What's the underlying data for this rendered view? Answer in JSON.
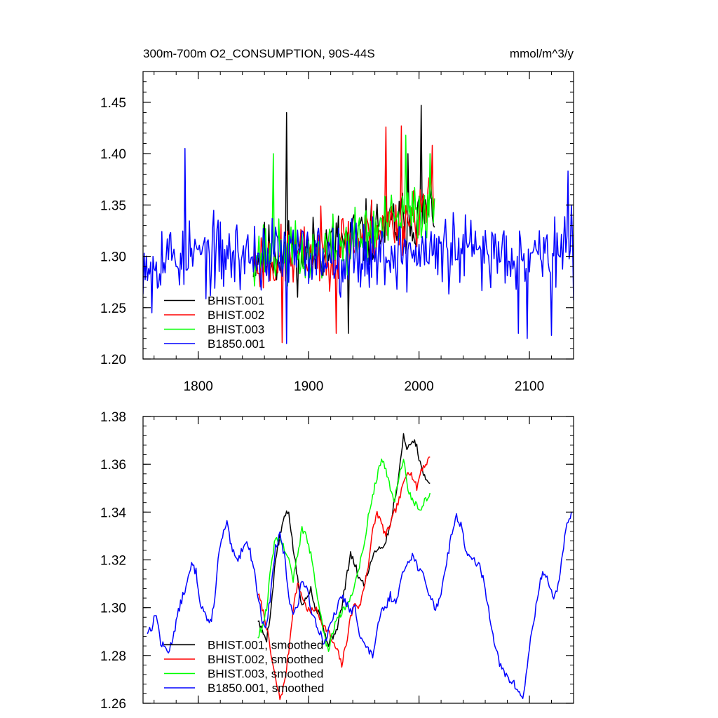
{
  "chart_data": [
    {
      "type": "line",
      "title": "300m-700m O2_CONSUMPTION, 90S-44S",
      "units": "mmol/m^3/y",
      "xlim": [
        1750,
        2140
      ],
      "ylim": [
        1.2,
        1.48
      ],
      "xticks": [
        1800,
        1900,
        2000,
        2100
      ],
      "xtick_labels": [
        "1800",
        "1900",
        "2000",
        "2100"
      ],
      "yticks": [
        1.2,
        1.25,
        1.3,
        1.35,
        1.4,
        1.45
      ],
      "ytick_labels": [
        "1.20",
        "1.25",
        "1.30",
        "1.35",
        "1.40",
        "1.45"
      ],
      "legend_position": "bottom-left",
      "series": [
        {
          "name": "BHIST.001",
          "color": "#000000",
          "x_start": 1850,
          "x_end": 2014,
          "seed": 11,
          "base": [
            [
              1850,
              1.3
            ],
            [
              1900,
              1.305
            ],
            [
              1950,
              1.32
            ],
            [
              2014,
              1.345
            ]
          ],
          "amp": 0.03,
          "spikes": [
            [
              1880,
              1.44
            ],
            [
              1936,
              1.225
            ],
            [
              2002,
              1.447
            ],
            [
              1990,
              1.4
            ]
          ]
        },
        {
          "name": "BHIST.002",
          "color": "#ff0000",
          "x_start": 1850,
          "x_end": 2014,
          "seed": 23,
          "base": [
            [
              1850,
              1.295
            ],
            [
              1900,
              1.3
            ],
            [
              1950,
              1.32
            ],
            [
              2014,
              1.35
            ]
          ],
          "amp": 0.03,
          "spikes": [
            [
              1876,
              1.216
            ],
            [
              1970,
              1.426
            ],
            [
              1984,
              1.427
            ],
            [
              2012,
              1.408
            ],
            [
              1925,
              1.225
            ]
          ]
        },
        {
          "name": "BHIST.003",
          "color": "#00ff00",
          "x_start": 1850,
          "x_end": 2014,
          "seed": 37,
          "base": [
            [
              1850,
              1.305
            ],
            [
              1900,
              1.3
            ],
            [
              1950,
              1.32
            ],
            [
              2014,
              1.35
            ]
          ],
          "amp": 0.028,
          "spikes": [
            [
              1868,
              1.4
            ],
            [
              1988,
              1.418
            ],
            [
              2010,
              1.4
            ]
          ]
        },
        {
          "name": "B1850.001",
          "color": "#0000ff",
          "x_start": 1750,
          "x_end": 2140,
          "seed": 53,
          "base": [
            [
              1750,
              1.3
            ],
            [
              2140,
              1.305
            ]
          ],
          "amp": 0.033,
          "spikes": [
            [
              1758,
              1.245
            ],
            [
              1788,
              1.405
            ],
            [
              1880,
              1.215
            ],
            [
              2098,
              1.22
            ],
            [
              2090,
              1.225
            ],
            [
              2120,
              1.223
            ],
            [
              2135,
              1.383
            ]
          ]
        }
      ]
    },
    {
      "type": "line",
      "xlim": [
        1750,
        2140
      ],
      "ylim": [
        1.26,
        1.38
      ],
      "xticks": [
        1800,
        1900,
        2000,
        2100
      ],
      "yticks": [
        1.26,
        1.28,
        1.3,
        1.32,
        1.34,
        1.36,
        1.38
      ],
      "ytick_labels": [
        "1.26",
        "1.28",
        "1.30",
        "1.32",
        "1.34",
        "1.36",
        "1.38"
      ],
      "legend_position": "bottom-left",
      "series": [
        {
          "name": "BHIST.001, smoothed",
          "color": "#000000",
          "jitter": 0.0015,
          "seed": 5,
          "x": [
            1854,
            1858,
            1862,
            1866,
            1870,
            1874,
            1878,
            1882,
            1886,
            1890,
            1894,
            1898,
            1902,
            1906,
            1910,
            1914,
            1918,
            1922,
            1926,
            1930,
            1934,
            1938,
            1942,
            1946,
            1950,
            1954,
            1958,
            1962,
            1966,
            1970,
            1974,
            1978,
            1982,
            1986,
            1990,
            1994,
            1998,
            2002,
            2006,
            2010
          ],
          "y": [
            1.295,
            1.29,
            1.287,
            1.3,
            1.32,
            1.33,
            1.338,
            1.34,
            1.325,
            1.312,
            1.3,
            1.305,
            1.308,
            1.3,
            1.298,
            1.29,
            1.285,
            1.288,
            1.292,
            1.3,
            1.312,
            1.322,
            1.318,
            1.312,
            1.31,
            1.315,
            1.322,
            1.325,
            1.325,
            1.328,
            1.335,
            1.345,
            1.357,
            1.372,
            1.366,
            1.37,
            1.368,
            1.358,
            1.355,
            1.352
          ]
        },
        {
          "name": "BHIST.002, smoothed",
          "color": "#ff0000",
          "jitter": 0.0015,
          "seed": 7,
          "x": [
            1854,
            1858,
            1862,
            1866,
            1870,
            1874,
            1878,
            1882,
            1886,
            1890,
            1894,
            1898,
            1902,
            1906,
            1910,
            1914,
            1918,
            1922,
            1926,
            1930,
            1934,
            1938,
            1942,
            1946,
            1950,
            1954,
            1958,
            1962,
            1966,
            1970,
            1974,
            1978,
            1982,
            1986,
            1990,
            1994,
            1998,
            2002,
            2006,
            2010
          ],
          "y": [
            1.306,
            1.3,
            1.292,
            1.28,
            1.27,
            1.262,
            1.268,
            1.282,
            1.3,
            1.31,
            1.305,
            1.3,
            1.298,
            1.3,
            1.296,
            1.292,
            1.29,
            1.285,
            1.282,
            1.276,
            1.285,
            1.296,
            1.302,
            1.3,
            1.308,
            1.318,
            1.332,
            1.34,
            1.335,
            1.33,
            1.335,
            1.34,
            1.345,
            1.352,
            1.358,
            1.355,
            1.35,
            1.358,
            1.36,
            1.363
          ]
        },
        {
          "name": "BHIST.003, smoothed",
          "color": "#00ff00",
          "jitter": 0.0015,
          "seed": 9,
          "x": [
            1854,
            1858,
            1862,
            1866,
            1870,
            1874,
            1878,
            1882,
            1886,
            1890,
            1894,
            1898,
            1902,
            1906,
            1910,
            1914,
            1918,
            1922,
            1926,
            1930,
            1934,
            1938,
            1942,
            1946,
            1950,
            1954,
            1958,
            1962,
            1966,
            1970,
            1974,
            1978,
            1982,
            1986,
            1990,
            1994,
            1998,
            2002,
            2006,
            2010
          ],
          "y": [
            1.288,
            1.292,
            1.3,
            1.318,
            1.33,
            1.328,
            1.325,
            1.32,
            1.312,
            1.322,
            1.333,
            1.33,
            1.322,
            1.31,
            1.3,
            1.288,
            1.282,
            1.29,
            1.296,
            1.298,
            1.3,
            1.305,
            1.31,
            1.318,
            1.325,
            1.338,
            1.347,
            1.355,
            1.362,
            1.358,
            1.35,
            1.345,
            1.355,
            1.362,
            1.35,
            1.345,
            1.343,
            1.342,
            1.345,
            1.348
          ]
        },
        {
          "name": "B1850.001, smoothed",
          "color": "#0000ff",
          "jitter": 0.0018,
          "seed": 13,
          "x": [
            1754,
            1758,
            1762,
            1766,
            1770,
            1774,
            1778,
            1782,
            1786,
            1790,
            1794,
            1798,
            1802,
            1806,
            1810,
            1814,
            1818,
            1822,
            1826,
            1830,
            1834,
            1838,
            1842,
            1846,
            1850,
            1854,
            1858,
            1862,
            1866,
            1870,
            1874,
            1878,
            1882,
            1886,
            1890,
            1894,
            1898,
            1902,
            1906,
            1910,
            1914,
            1918,
            1922,
            1926,
            1930,
            1934,
            1938,
            1942,
            1946,
            1950,
            1954,
            1958,
            1962,
            1966,
            1970,
            1974,
            1978,
            1982,
            1986,
            1990,
            1994,
            1998,
            2002,
            2006,
            2010,
            2014,
            2018,
            2022,
            2026,
            2030,
            2034,
            2038,
            2042,
            2046,
            2050,
            2054,
            2058,
            2062,
            2066,
            2070,
            2074,
            2078,
            2082,
            2086,
            2090,
            2094,
            2098,
            2102,
            2106,
            2110,
            2114,
            2118,
            2122,
            2126,
            2130,
            2134,
            2138
          ],
          "y": [
            1.29,
            1.292,
            1.298,
            1.285,
            1.283,
            1.282,
            1.29,
            1.298,
            1.305,
            1.31,
            1.318,
            1.315,
            1.302,
            1.298,
            1.292,
            1.3,
            1.32,
            1.33,
            1.335,
            1.325,
            1.32,
            1.322,
            1.328,
            1.325,
            1.318,
            1.305,
            1.295,
            1.292,
            1.308,
            1.325,
            1.33,
            1.322,
            1.305,
            1.298,
            1.3,
            1.312,
            1.308,
            1.3,
            1.295,
            1.29,
            1.285,
            1.29,
            1.295,
            1.3,
            1.305,
            1.302,
            1.298,
            1.3,
            1.29,
            1.285,
            1.282,
            1.28,
            1.29,
            1.298,
            1.3,
            1.305,
            1.302,
            1.308,
            1.315,
            1.32,
            1.322,
            1.318,
            1.315,
            1.31,
            1.305,
            1.3,
            1.302,
            1.312,
            1.322,
            1.332,
            1.338,
            1.335,
            1.325,
            1.32,
            1.32,
            1.318,
            1.312,
            1.302,
            1.292,
            1.282,
            1.275,
            1.272,
            1.27,
            1.268,
            1.265,
            1.262,
            1.275,
            1.29,
            1.3,
            1.312,
            1.315,
            1.31,
            1.302,
            1.31,
            1.322,
            1.335,
            1.34
          ]
        }
      ]
    }
  ]
}
